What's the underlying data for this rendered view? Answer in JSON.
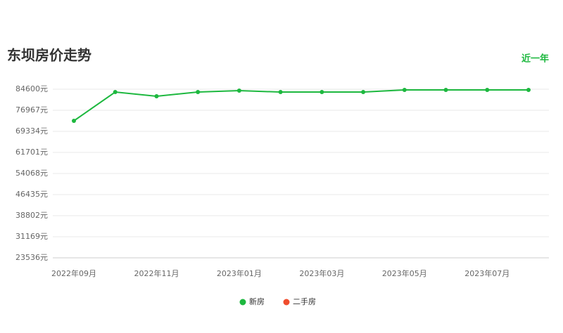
{
  "chart_data": {
    "type": "line",
    "title": "东坝房价走势",
    "range_label": "近一年",
    "categories": [
      "2022年09月",
      null,
      "2022年11月",
      null,
      "2023年01月",
      null,
      "2023年03月",
      null,
      "2023年05月",
      null,
      "2023年07月",
      null
    ],
    "series": [
      {
        "name": "新房",
        "color": "#1db83f",
        "values": [
          73150,
          83580,
          82060,
          83580,
          84090,
          83580,
          83580,
          83580,
          84350,
          84350,
          84350,
          84350
        ]
      },
      {
        "name": "二手房",
        "color": "#f04d2e",
        "values": [
          null,
          null,
          null,
          null,
          null,
          null,
          null,
          null,
          null,
          null,
          null,
          null
        ]
      }
    ],
    "ylim": [
      23536,
      84600
    ],
    "yticks": [
      {
        "value": 23536,
        "label": "23536元"
      },
      {
        "value": 31169,
        "label": "31169元"
      },
      {
        "value": 38802,
        "label": "38802元"
      },
      {
        "value": 46435,
        "label": "46435元"
      },
      {
        "value": 54068,
        "label": "54068元"
      },
      {
        "value": 61701,
        "label": "61701元"
      },
      {
        "value": 69334,
        "label": "69334元"
      },
      {
        "value": 76967,
        "label": "76967元"
      },
      {
        "value": 84600,
        "label": "84600元"
      }
    ],
    "grid": true
  }
}
